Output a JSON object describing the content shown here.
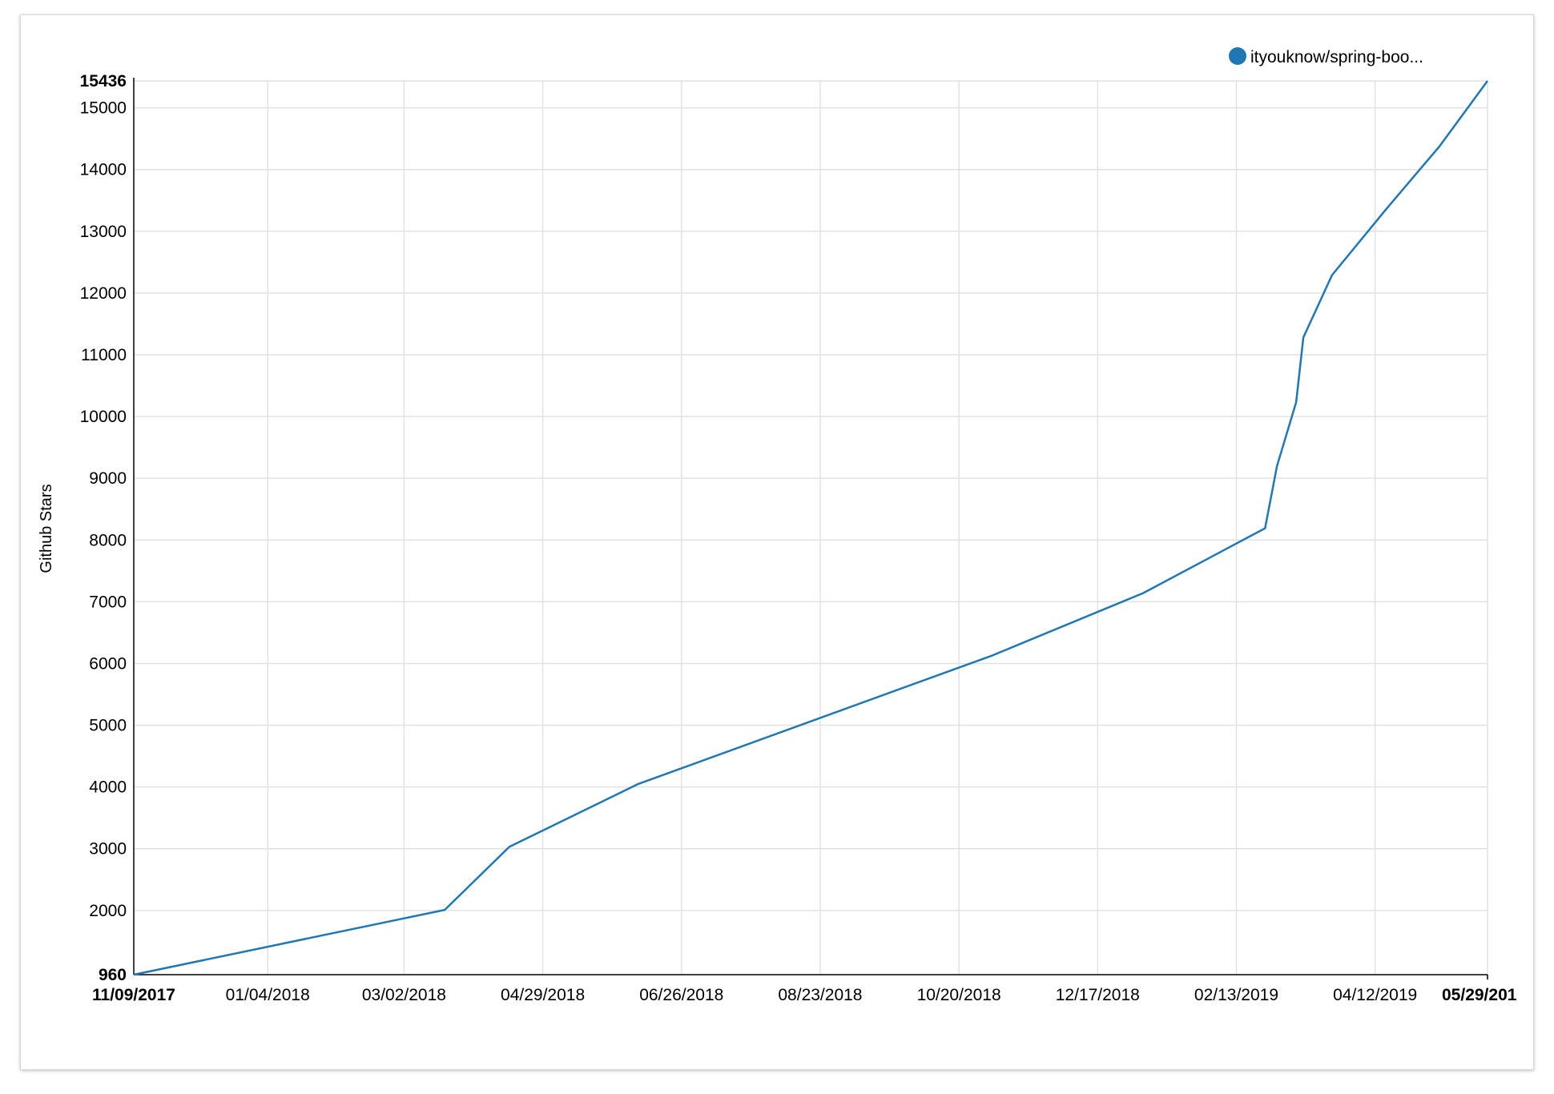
{
  "chart_data": {
    "type": "line",
    "title": "",
    "xlabel": "",
    "ylabel": "Github Stars",
    "grid": true,
    "legend_position": "top-right",
    "x_axis": {
      "type": "date",
      "min": "2017-11-09",
      "max": "2019-05-29",
      "ticks": [
        {
          "label": "11/09/2017",
          "date": "2017-11-09",
          "bold": true
        },
        {
          "label": "01/04/2018",
          "date": "2018-01-04",
          "bold": false
        },
        {
          "label": "03/02/2018",
          "date": "2018-03-02",
          "bold": false
        },
        {
          "label": "04/29/2018",
          "date": "2018-04-29",
          "bold": false
        },
        {
          "label": "06/26/2018",
          "date": "2018-06-26",
          "bold": false
        },
        {
          "label": "08/23/2018",
          "date": "2018-08-23",
          "bold": false
        },
        {
          "label": "10/20/2018",
          "date": "2018-10-20",
          "bold": false
        },
        {
          "label": "12/17/2018",
          "date": "2018-12-17",
          "bold": false
        },
        {
          "label": "02/13/2019",
          "date": "2019-02-13",
          "bold": false
        },
        {
          "label": "04/12/2019",
          "date": "2019-04-12",
          "bold": false
        },
        {
          "label": "05/29/201",
          "date": "2019-05-29",
          "bold": true
        }
      ]
    },
    "y_axis": {
      "min": 960,
      "max": 15436,
      "ticks": [
        {
          "label": "960",
          "value": 960,
          "bold": true
        },
        {
          "label": "2000",
          "value": 2000,
          "bold": false
        },
        {
          "label": "3000",
          "value": 3000,
          "bold": false
        },
        {
          "label": "4000",
          "value": 4000,
          "bold": false
        },
        {
          "label": "5000",
          "value": 5000,
          "bold": false
        },
        {
          "label": "6000",
          "value": 6000,
          "bold": false
        },
        {
          "label": "7000",
          "value": 7000,
          "bold": false
        },
        {
          "label": "8000",
          "value": 8000,
          "bold": false
        },
        {
          "label": "9000",
          "value": 9000,
          "bold": false
        },
        {
          "label": "10000",
          "value": 10000,
          "bold": false
        },
        {
          "label": "11000",
          "value": 11000,
          "bold": false
        },
        {
          "label": "12000",
          "value": 12000,
          "bold": false
        },
        {
          "label": "13000",
          "value": 13000,
          "bold": false
        },
        {
          "label": "14000",
          "value": 14000,
          "bold": false
        },
        {
          "label": "15000",
          "value": 15000,
          "bold": false
        },
        {
          "label": "15436",
          "value": 15436,
          "bold": true
        }
      ]
    },
    "series": [
      {
        "name": "ityouknow/spring-boo...",
        "color": "#1f77b4",
        "points": [
          {
            "x": "2017-11-09",
            "y": 960
          },
          {
            "x": "2018-03-19",
            "y": 2010
          },
          {
            "x": "2018-04-15",
            "y": 3030
          },
          {
            "x": "2018-06-08",
            "y": 4050
          },
          {
            "x": "2018-11-03",
            "y": 6130
          },
          {
            "x": "2019-01-05",
            "y": 7140
          },
          {
            "x": "2019-02-25",
            "y": 8190
          },
          {
            "x": "2019-03-02",
            "y": 9200
          },
          {
            "x": "2019-03-10",
            "y": 10230
          },
          {
            "x": "2019-03-13",
            "y": 11280
          },
          {
            "x": "2019-03-25",
            "y": 12290
          },
          {
            "x": "2019-04-16",
            "y": 13330
          },
          {
            "x": "2019-05-09",
            "y": 14380
          },
          {
            "x": "2019-05-29",
            "y": 15436
          }
        ]
      }
    ]
  }
}
